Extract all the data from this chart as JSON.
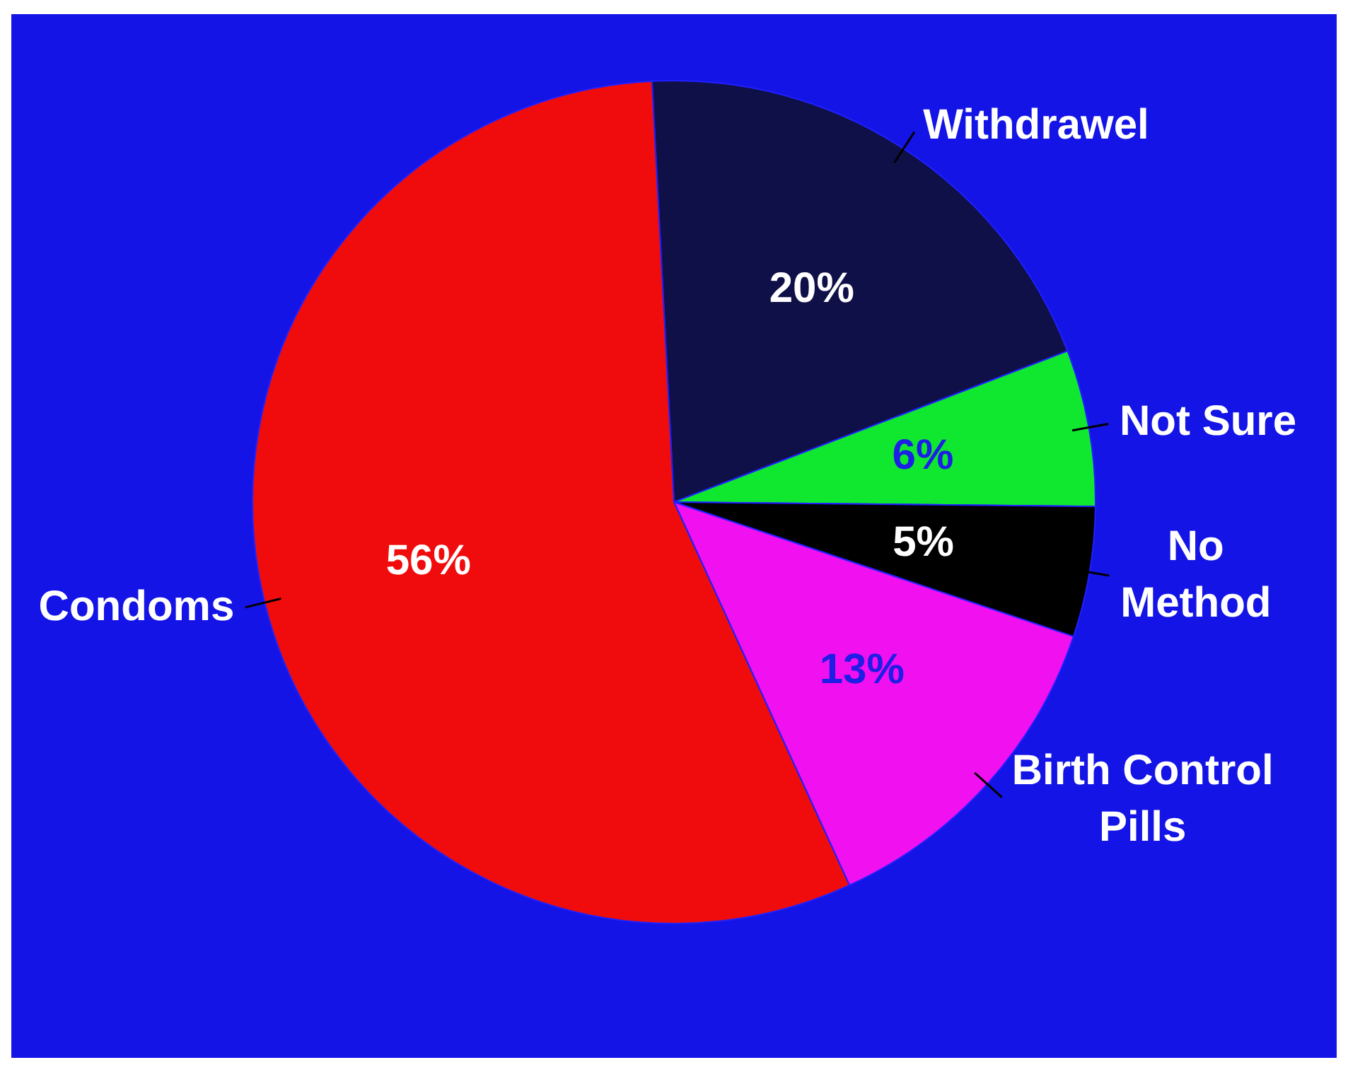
{
  "chart_data": {
    "type": "pie",
    "categories": [
      "Withdrawel",
      "Not Sure",
      "No Method",
      "Birth Control Pills",
      "Condoms"
    ],
    "values": [
      20,
      6,
      5,
      13,
      56
    ],
    "colors": [
      "#101048",
      "#10e830",
      "#000000",
      "#f010f0",
      "#f00c0c"
    ],
    "value_labels": [
      "20%",
      "6%",
      "5%",
      "13%",
      "56%"
    ],
    "legend": false
  }
}
